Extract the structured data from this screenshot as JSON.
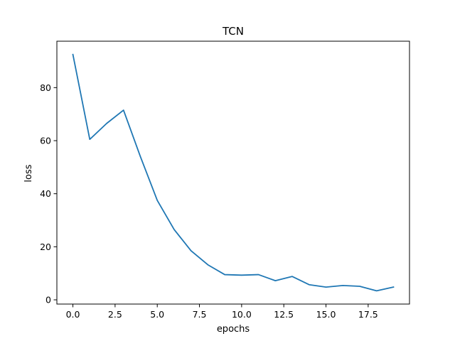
{
  "chart_data": {
    "type": "line",
    "title": "TCN",
    "xlabel": "epochs",
    "ylabel": "loss",
    "xlim": [
      -0.95,
      19.95
    ],
    "ylim": [
      -1.6,
      97.5
    ],
    "xticks": [
      0,
      2.5,
      5,
      7.5,
      10,
      12.5,
      15,
      17.5
    ],
    "xtick_labels": [
      "0.0",
      "2.5",
      "5.0",
      "7.5",
      "10.0",
      "12.5",
      "15.0",
      "17.5"
    ],
    "yticks": [
      0,
      20,
      40,
      60,
      80
    ],
    "ytick_labels": [
      "0",
      "20",
      "40",
      "60",
      "80"
    ],
    "grid": false,
    "series": [
      {
        "color": "#1f77b4",
        "x": [
          0,
          1,
          2,
          3,
          4,
          5,
          6,
          7,
          8,
          9,
          10,
          11,
          12,
          13,
          14,
          15,
          16,
          17,
          18,
          19
        ],
        "y": [
          92.5,
          60.5,
          66.5,
          71.5,
          54.0,
          37.5,
          26.5,
          18.5,
          13.2,
          9.5,
          9.3,
          9.5,
          7.2,
          8.8,
          5.7,
          4.8,
          5.4,
          5.1,
          3.4,
          4.8
        ]
      }
    ]
  }
}
